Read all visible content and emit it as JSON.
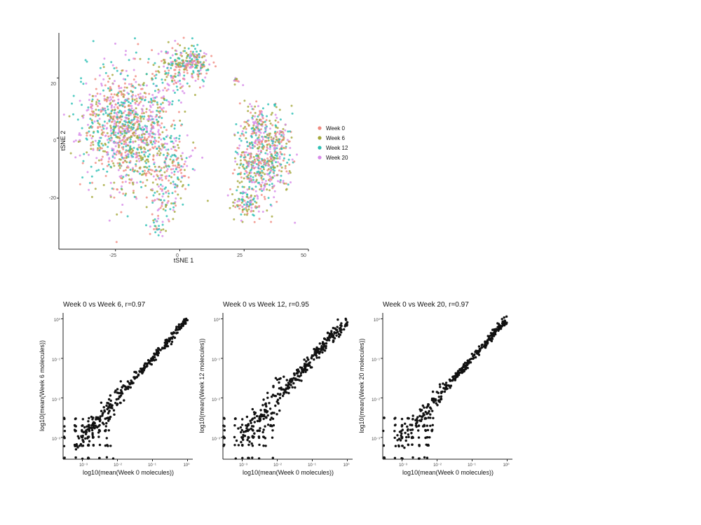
{
  "chart_data": [
    {
      "type": "scatter",
      "title": "",
      "xlabel": "tSNE 1",
      "ylabel": "tSNE 2",
      "xlim": [
        -47,
        50
      ],
      "ylim": [
        -37,
        35
      ],
      "xticks": [
        -25,
        0,
        25,
        50
      ],
      "yticks": [
        -20,
        0,
        20
      ],
      "xtick_labels": [
        "-25",
        "0",
        "25",
        "50"
      ],
      "ytick_labels": [
        "-20",
        "0",
        "20"
      ],
      "grid": false,
      "legend_position": "right",
      "series": [
        {
          "name": "Week 0",
          "color": "#f08a80"
        },
        {
          "name": "Week 6",
          "color": "#a4a83a"
        },
        {
          "name": "Week 12",
          "color": "#2bbfb4"
        },
        {
          "name": "Week 20",
          "color": "#d78ae8"
        }
      ],
      "clusters": [
        {
          "center": [
            -20,
            3
          ],
          "spread": [
            12,
            13
          ],
          "share": 0.47
        },
        {
          "center": [
            -3,
            22
          ],
          "spread": [
            5,
            6
          ],
          "share": 0.05
        },
        {
          "center": [
            3,
            26
          ],
          "spread": [
            4,
            4
          ],
          "share": 0.05
        },
        {
          "center": [
            8,
            24
          ],
          "spread": [
            3,
            3
          ],
          "share": 0.03
        },
        {
          "center": [
            -3,
            -8
          ],
          "spread": [
            6,
            6
          ],
          "share": 0.05
        },
        {
          "center": [
            -6,
            -20
          ],
          "spread": [
            4,
            5
          ],
          "share": 0.03
        },
        {
          "center": [
            -9,
            -30
          ],
          "spread": [
            2,
            2
          ],
          "share": 0.01
        },
        {
          "center": [
            30,
            3
          ],
          "spread": [
            5,
            6
          ],
          "share": 0.08
        },
        {
          "center": [
            27,
            -9
          ],
          "spread": [
            4,
            5
          ],
          "share": 0.05
        },
        {
          "center": [
            34,
            -12
          ],
          "spread": [
            6,
            7
          ],
          "share": 0.09
        },
        {
          "center": [
            38,
            -2
          ],
          "spread": [
            4,
            6
          ],
          "share": 0.05
        },
        {
          "center": [
            25,
            -22
          ],
          "spread": [
            4,
            4
          ],
          "share": 0.04
        },
        {
          "center": [
            22,
            19
          ],
          "spread": [
            0.8,
            0.6
          ],
          "share": 0.005
        },
        {
          "center": [
            37,
            11
          ],
          "spread": [
            0.4,
            0.4
          ],
          "share": 0.002
        }
      ],
      "n_points": 2400
    },
    {
      "type": "scatter",
      "title": "Week 0 vs Week 6, r=0.97",
      "xlabel": "log10(mean(Week 0 molecules))",
      "ylabel": "log10(mean(Week 6 molecules))",
      "log_scale": true,
      "xlim_log10": [
        -3.55,
        0.15
      ],
      "ylim_log10": [
        -3.55,
        0.15
      ],
      "ticks_log10": [
        -3,
        -2,
        -1,
        0
      ],
      "tick_labels": [
        "10⁻³",
        "10⁻²",
        "10⁻¹",
        "10⁰"
      ],
      "r": 0.97,
      "n_points": 380,
      "grid": false
    },
    {
      "type": "scatter",
      "title": "Week 0 vs Week 12, r=0.95",
      "xlabel": "log10(mean(Week 0 molecules))",
      "ylabel": "log10(mean(Week 12 molecules))",
      "log_scale": true,
      "xlim_log10": [
        -3.55,
        0.15
      ],
      "ylim_log10": [
        -3.55,
        0.15
      ],
      "ticks_log10": [
        -3,
        -2,
        -1,
        0
      ],
      "tick_labels": [
        "10⁻³",
        "10⁻²",
        "10⁻¹",
        "10⁰"
      ],
      "r": 0.95,
      "n_points": 380,
      "grid": false
    },
    {
      "type": "scatter",
      "title": "Week 0 vs Week 20, r=0.97",
      "xlabel": "log10(mean(Week 0 molecules))",
      "ylabel": "log10(mean(Week 20 molecules))",
      "log_scale": true,
      "xlim_log10": [
        -3.55,
        0.15
      ],
      "ylim_log10": [
        -3.55,
        0.15
      ],
      "ticks_log10": [
        -3,
        -2,
        -1,
        0
      ],
      "tick_labels": [
        "10⁻³",
        "10⁻²",
        "10⁻¹",
        "10⁰"
      ],
      "r": 0.97,
      "n_points": 380,
      "grid": false
    }
  ],
  "colors": {
    "axis": "#222222",
    "point_dark": "#111111"
  }
}
